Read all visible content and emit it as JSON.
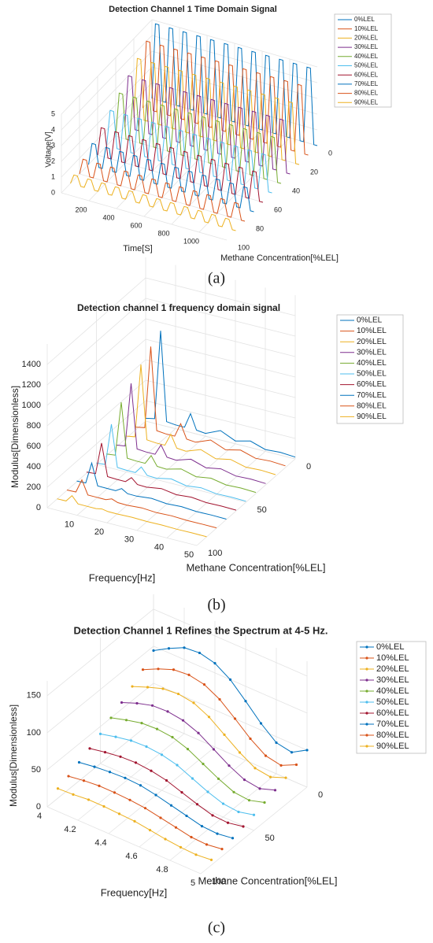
{
  "chart_data": [
    {
      "type": "line3d",
      "caption": "(a)",
      "title": "Detection Channel 1 Time Domain Signal",
      "xlabel": "Time[S]",
      "ylabel": "Methane Concentration[%LEL]",
      "zlabel": "Voltage[V]",
      "xlim": [
        0,
        1200
      ],
      "xticks": [
        200,
        400,
        600,
        800,
        1000
      ],
      "ylim": [
        0,
        100
      ],
      "yticks": [
        0,
        20,
        40,
        60,
        80,
        100
      ],
      "zlim": [
        0,
        5
      ],
      "zticks": [
        0,
        1,
        2,
        3,
        4,
        5
      ],
      "grid": true,
      "legend": "northeast-outside",
      "markers": false,
      "x": [
        0,
        25,
        50,
        75,
        100,
        125,
        150,
        175,
        200,
        225,
        250,
        275,
        300,
        325,
        350,
        375,
        400,
        425,
        450,
        475,
        500,
        525,
        550,
        575,
        600,
        625,
        650,
        675,
        700,
        725,
        750,
        775,
        800,
        825,
        850,
        875,
        900,
        925,
        950,
        975,
        1000,
        1025,
        1050,
        1075,
        1100,
        1125,
        1150,
        1175,
        1200
      ],
      "series": [
        {
          "name": "0%LEL",
          "color": "#0072BD",
          "concentration": 0,
          "values": [
            0,
            4.8,
            4.8,
            0,
            0,
            4.8,
            4.8,
            0,
            0,
            4.8,
            4.8,
            0,
            0,
            4.8,
            4.8,
            0,
            0,
            4.8,
            4.8,
            0,
            0,
            4.8,
            4.8,
            0,
            0,
            4.8,
            4.8,
            0,
            0,
            4.8,
            4.8,
            0,
            0,
            4.8,
            4.8,
            0,
            0,
            4.8,
            4.8,
            0,
            0,
            4.8,
            4.8,
            0,
            0,
            4.8,
            4.8,
            0,
            0
          ]
        },
        {
          "name": "10%LEL",
          "color": "#D95319",
          "concentration": 10,
          "values": [
            0,
            4.3,
            4.3,
            0,
            0,
            4.3,
            4.3,
            0,
            0,
            4.3,
            4.3,
            0,
            0,
            4.3,
            4.3,
            0,
            0,
            4.3,
            4.3,
            0,
            0,
            4.3,
            4.3,
            0,
            0,
            4.3,
            4.3,
            0,
            0,
            4.3,
            4.3,
            0,
            0,
            4.3,
            4.3,
            0,
            0,
            4.3,
            4.3,
            0,
            0,
            4.3,
            4.3,
            0,
            0,
            4.3,
            4.3,
            0,
            0
          ]
        },
        {
          "name": "20%LEL",
          "color": "#EDB120",
          "concentration": 20,
          "values": [
            0,
            3.8,
            3.8,
            0,
            0,
            3.8,
            3.8,
            0,
            0,
            3.8,
            3.8,
            0,
            0,
            3.8,
            3.8,
            0,
            0,
            3.8,
            3.8,
            0,
            0,
            3.8,
            3.8,
            0,
            0,
            3.8,
            3.8,
            0,
            0,
            3.8,
            3.8,
            0,
            0,
            3.8,
            3.8,
            0,
            0,
            3.8,
            3.8,
            0,
            0,
            3.8,
            3.8,
            0,
            0,
            3.8,
            3.8,
            0,
            0
          ]
        },
        {
          "name": "30%LEL",
          "color": "#7E2F8E",
          "concentration": 30,
          "values": [
            0,
            3.3,
            3.3,
            0,
            0,
            3.3,
            3.3,
            0,
            0,
            3.3,
            3.3,
            0,
            0,
            3.3,
            3.3,
            0,
            0,
            3.3,
            3.3,
            0,
            0,
            3.3,
            3.3,
            0,
            0,
            3.3,
            3.3,
            0,
            0,
            3.3,
            3.3,
            0,
            0,
            3.3,
            3.3,
            0,
            0,
            3.3,
            3.3,
            0,
            0,
            3.3,
            3.3,
            0,
            0,
            3.3,
            3.3,
            0,
            0
          ]
        },
        {
          "name": "40%LEL",
          "color": "#77AC30",
          "concentration": 40,
          "values": [
            0,
            2.8,
            2.8,
            0,
            0,
            2.8,
            2.8,
            0,
            0,
            2.8,
            2.8,
            0,
            0,
            2.8,
            2.8,
            0,
            0,
            2.8,
            2.8,
            0,
            0,
            2.8,
            2.8,
            0,
            0,
            2.8,
            2.8,
            0,
            0,
            2.8,
            2.8,
            0,
            0,
            2.8,
            2.8,
            0,
            0,
            2.8,
            2.8,
            0,
            0,
            2.8,
            2.8,
            0,
            0,
            2.8,
            2.8,
            0,
            0
          ]
        },
        {
          "name": "50%LEL",
          "color": "#4DBEEE",
          "concentration": 50,
          "values": [
            0,
            2.3,
            2.3,
            0,
            0,
            2.3,
            2.3,
            0,
            0,
            2.3,
            2.3,
            0,
            0,
            2.3,
            2.3,
            0,
            0,
            2.3,
            2.3,
            0,
            0,
            2.3,
            2.3,
            0,
            0,
            2.3,
            2.3,
            0,
            0,
            2.3,
            2.3,
            0,
            0,
            2.3,
            2.3,
            0,
            0,
            2.3,
            2.3,
            0,
            0,
            2.3,
            2.3,
            0,
            0,
            2.3,
            2.3,
            0,
            0
          ]
        },
        {
          "name": "60%LEL",
          "color": "#A2142F",
          "concentration": 60,
          "values": [
            0,
            1.8,
            1.8,
            0,
            0,
            1.8,
            1.8,
            0,
            0,
            1.8,
            1.8,
            0,
            0,
            1.8,
            1.8,
            0,
            0,
            1.8,
            1.8,
            0,
            0,
            1.8,
            1.8,
            0,
            0,
            1.8,
            1.8,
            0,
            0,
            1.8,
            1.8,
            0,
            0,
            1.8,
            1.8,
            0,
            0,
            1.8,
            1.8,
            0,
            0,
            1.8,
            1.8,
            0,
            0,
            1.8,
            1.8,
            0,
            0
          ]
        },
        {
          "name": "70%LEL",
          "color": "#0072BD",
          "concentration": 70,
          "values": [
            0,
            1.4,
            1.4,
            0,
            0,
            1.4,
            1.4,
            0,
            0,
            1.4,
            1.4,
            0,
            0,
            1.4,
            1.4,
            0,
            0,
            1.4,
            1.4,
            0,
            0,
            1.4,
            1.4,
            0,
            0,
            1.4,
            1.4,
            0,
            0,
            1.4,
            1.4,
            0,
            0,
            1.4,
            1.4,
            0,
            0,
            1.4,
            1.4,
            0,
            0,
            1.4,
            1.4,
            0,
            0,
            1.4,
            1.4,
            0,
            0
          ]
        },
        {
          "name": "80%LEL",
          "color": "#D95319",
          "concentration": 80,
          "values": [
            0,
            1,
            1,
            0,
            0,
            1,
            1,
            0,
            0,
            1,
            1,
            0,
            0,
            1,
            1,
            0,
            0,
            1,
            1,
            0,
            0,
            1,
            1,
            0,
            0,
            1,
            1,
            0,
            0,
            1,
            1,
            0,
            0,
            1,
            1,
            0,
            0,
            1,
            1,
            0,
            0,
            1,
            1,
            0,
            0,
            1,
            1,
            0,
            0
          ]
        },
        {
          "name": "90%LEL",
          "color": "#EDB120",
          "concentration": 90,
          "values": [
            0,
            0.6,
            0.6,
            0,
            0,
            0.6,
            0.6,
            0,
            0,
            0.6,
            0.6,
            0,
            0,
            0.6,
            0.6,
            0,
            0,
            0.6,
            0.6,
            0,
            0,
            0.6,
            0.6,
            0,
            0,
            0.6,
            0.6,
            0,
            0,
            0.6,
            0.6,
            0,
            0,
            0.6,
            0.6,
            0,
            0,
            0.6,
            0.6,
            0,
            0,
            0.6,
            0.6,
            0,
            0,
            0.6,
            0.6,
            0,
            0
          ]
        }
      ]
    },
    {
      "type": "line3d",
      "caption": "(b)",
      "title": "Detection channel 1 frequency domain signal",
      "xlabel": "Frequency[Hz]",
      "ylabel": "Methane Concentration[%LEL]",
      "zlabel": "Modulus[Dimensionless]",
      "xlim": [
        0,
        50
      ],
      "xticks": [
        10,
        20,
        30,
        40,
        50
      ],
      "ylim": [
        0,
        100
      ],
      "yticks": [
        0,
        50,
        100
      ],
      "zlim": [
        0,
        1600
      ],
      "zticks": [
        0,
        200,
        400,
        600,
        800,
        1000,
        1200,
        1400
      ],
      "grid": true,
      "legend": "northeast-outside",
      "markers": false,
      "x": [
        0,
        3,
        5,
        7,
        10,
        13,
        15,
        17,
        20,
        25,
        30,
        35,
        40,
        45,
        50
      ],
      "series": [
        {
          "name": "0%LEL",
          "color": "#0072BD",
          "concentration": 0,
          "values": [
            28,
            46,
            920,
            46,
            37,
            37,
            184,
            37,
            28,
            92,
            28,
            64,
            18,
            28,
            18
          ]
        },
        {
          "name": "10%LEL",
          "color": "#D95319",
          "concentration": 10,
          "values": [
            26,
            43,
            850,
            43,
            34,
            34,
            170,
            34,
            26,
            85,
            26,
            60,
            17,
            26,
            17
          ]
        },
        {
          "name": "20%LEL",
          "color": "#EDB120",
          "concentration": 20,
          "values": [
            23,
            38,
            760,
            38,
            30,
            30,
            152,
            30,
            23,
            76,
            23,
            53,
            15,
            23,
            15
          ]
        },
        {
          "name": "30%LEL",
          "color": "#7E2F8E",
          "concentration": 30,
          "values": [
            20,
            33,
            660,
            33,
            26,
            26,
            132,
            26,
            20,
            66,
            20,
            46,
            13,
            20,
            13
          ]
        },
        {
          "name": "40%LEL",
          "color": "#77AC30",
          "concentration": 40,
          "values": [
            17,
            28,
            560,
            28,
            22,
            22,
            112,
            22,
            17,
            56,
            17,
            39,
            11,
            17,
            11
          ]
        },
        {
          "name": "50%LEL",
          "color": "#4DBEEE",
          "concentration": 50,
          "values": [
            13,
            22,
            430,
            22,
            17,
            17,
            86,
            17,
            13,
            43,
            13,
            30,
            9,
            13,
            9
          ]
        },
        {
          "name": "60%LEL",
          "color": "#A2142F",
          "concentration": 60,
          "values": [
            10,
            17,
            330,
            17,
            13,
            13,
            66,
            13,
            10,
            33,
            10,
            23,
            7,
            10,
            7
          ]
        },
        {
          "name": "70%LEL",
          "color": "#0072BD",
          "concentration": 70,
          "values": [
            7,
            11,
            220,
            11,
            9,
            9,
            44,
            9,
            7,
            22,
            7,
            15,
            4,
            7,
            4
          ]
        },
        {
          "name": "80%LEL",
          "color": "#D95319",
          "concentration": 80,
          "values": [
            4,
            7,
            140,
            7,
            6,
            6,
            28,
            6,
            4,
            14,
            4,
            10,
            3,
            4,
            3
          ]
        },
        {
          "name": "90%LEL",
          "color": "#EDB120",
          "concentration": 90,
          "values": [
            2,
            4,
            70,
            4,
            3,
            3,
            14,
            3,
            2,
            7,
            2,
            5,
            1,
            2,
            1
          ]
        }
      ]
    },
    {
      "type": "line3d",
      "caption": "(c)",
      "title": "Detection Channel 1 Refines the Spectrum at 4-5 Hz.",
      "xlabel": "Frequency[Hz]",
      "ylabel": "Methane Concentration[%LEL]",
      "zlabel": "Modulus[Dimensionless]",
      "xlim": [
        4,
        5
      ],
      "xticks": [
        4,
        4.2,
        4.4,
        4.6,
        4.8,
        5
      ],
      "ylim": [
        0,
        100
      ],
      "yticks": [
        0,
        50,
        100
      ],
      "zlim": [
        0,
        170
      ],
      "zticks": [
        0,
        50,
        100,
        150
      ],
      "grid": true,
      "legend": "northeast-outside",
      "markers": true,
      "x": [
        4,
        4.1,
        4.2,
        4.3,
        4.4,
        4.5,
        4.6,
        4.7,
        4.8,
        4.9,
        5
      ],
      "series": [
        {
          "name": "0%LEL",
          "color": "#0072BD",
          "concentration": 0,
          "values": [
            94,
            106,
            116,
            118,
            113,
            100,
            80,
            59,
            42,
            38,
            50
          ]
        },
        {
          "name": "10%LEL",
          "color": "#D95319",
          "concentration": 10,
          "values": [
            80,
            90,
            98,
            100,
            96,
            85,
            68,
            50,
            36,
            32,
            42
          ]
        },
        {
          "name": "20%LEL",
          "color": "#EDB120",
          "concentration": 20,
          "values": [
            69,
            77,
            84,
            86,
            83,
            73,
            58,
            43,
            31,
            28,
            36
          ]
        },
        {
          "name": "30%LEL",
          "color": "#7E2F8E",
          "concentration": 30,
          "values": [
            59,
            67,
            73,
            74,
            71,
            63,
            50,
            37,
            27,
            24,
            31
          ]
        },
        {
          "name": "40%LEL",
          "color": "#77AC30",
          "concentration": 40,
          "values": [
            50,
            56,
            61,
            62,
            60,
            53,
            42,
            31,
            22,
            20,
            26
          ]
        },
        {
          "name": "50%LEL",
          "color": "#4DBEEE",
          "concentration": 50,
          "values": [
            40,
            45,
            49,
            50,
            48,
            43,
            34,
            25,
            18,
            16,
            21
          ]
        },
        {
          "name": "60%LEL",
          "color": "#A2142F",
          "concentration": 60,
          "values": [
            32,
            36,
            39,
            40,
            38,
            34,
            27,
            20,
            14,
            13,
            17
          ]
        },
        {
          "name": "70%LEL",
          "color": "#0072BD",
          "concentration": 70,
          "values": [
            25,
            28,
            30,
            31,
            30,
            26,
            21,
            16,
            11,
            10,
            13
          ]
        },
        {
          "name": "80%LEL",
          "color": "#D95319",
          "concentration": 80,
          "values": [
            18,
            21,
            23,
            23,
            22,
            20,
            16,
            12,
            8,
            7,
            10
          ]
        },
        {
          "name": "90%LEL",
          "color": "#EDB120",
          "concentration": 90,
          "values": [
            13,
            14,
            16,
            16,
            15,
            14,
            11,
            8,
            6,
            5,
            7
          ]
        }
      ]
    }
  ]
}
